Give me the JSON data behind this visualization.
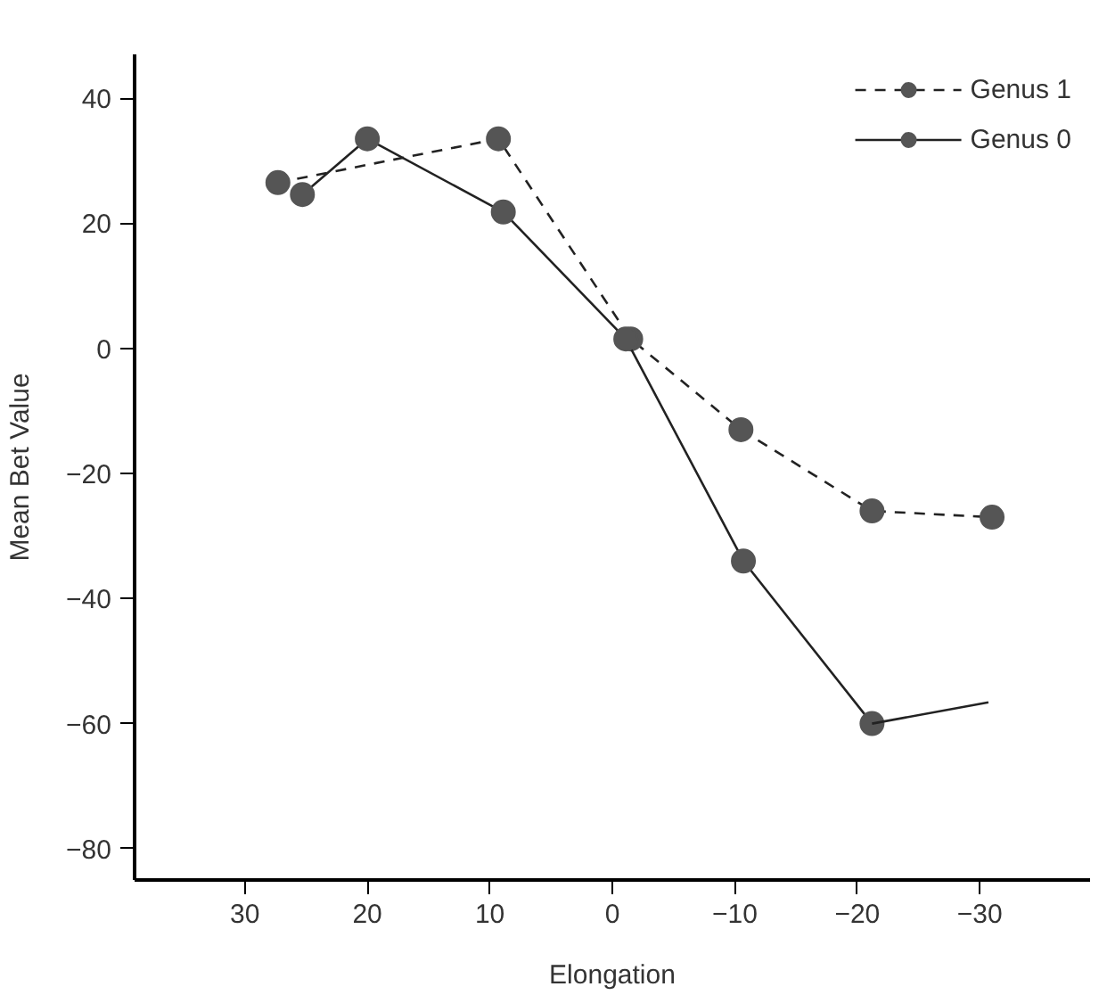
{
  "chart_data": {
    "type": "line",
    "xlabel": "Elongation",
    "ylabel": "Mean Bet Value",
    "xlim": [
      39,
      -39
    ],
    "xticks": [
      30,
      20,
      10,
      0,
      {
        "value": -10,
        "label": "−10"
      },
      {
        "value": -20,
        "label": "−20"
      },
      {
        "value": -30,
        "label": "−30"
      }
    ],
    "ylim": [
      -85,
      47
    ],
    "yticks": [
      40,
      20,
      0,
      {
        "value": -20,
        "label": "−20"
      },
      {
        "value": -40,
        "label": "−40"
      },
      {
        "value": -60,
        "label": "−60"
      },
      {
        "value": -80,
        "label": "−80"
      }
    ],
    "grid": false,
    "legend": "top right",
    "marker": "circle",
    "series": [
      {
        "name": "Genus 1",
        "color": "#222222",
        "line_style": "dashed",
        "x": [
          27.3,
          9.3,
          -1.5,
          -10.5,
          -21.2,
          -31
        ],
        "values": [
          26.5,
          33.5,
          1.5,
          -13,
          -26,
          -27
        ]
      },
      {
        "name": "Genus 0",
        "color": "#222222",
        "line_style": "solid",
        "x": [
          25.3,
          20,
          8.9,
          -1.1,
          -10.7,
          -21.2
        ],
        "values": [
          24.6,
          33.5,
          21.8,
          1.5,
          -34,
          -60
        ]
      },
      {
        "color": "#222222",
        "line_style": "solid",
        "marker": "none",
        "x": [
          -21.2,
          -30.7
        ],
        "values": [
          -60,
          -56.6
        ]
      }
    ]
  }
}
